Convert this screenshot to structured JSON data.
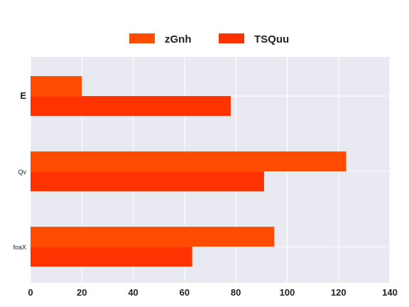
{
  "chart_data": {
    "type": "bar",
    "orientation": "horizontal",
    "categories": [
      "E",
      "Qv",
      "foaX"
    ],
    "series": [
      {
        "name": "zGnh",
        "values": [
          20,
          123,
          95
        ],
        "color": "#ff4c00"
      },
      {
        "name": "TSQuu",
        "values": [
          78,
          91,
          63
        ],
        "color": "#ff3300"
      }
    ],
    "xlim": [
      0,
      140
    ],
    "xticks": [
      0,
      20,
      40,
      60,
      80,
      100,
      120,
      140
    ],
    "grid": true,
    "legend_position": "top-center",
    "background": "#e9e9f1"
  }
}
